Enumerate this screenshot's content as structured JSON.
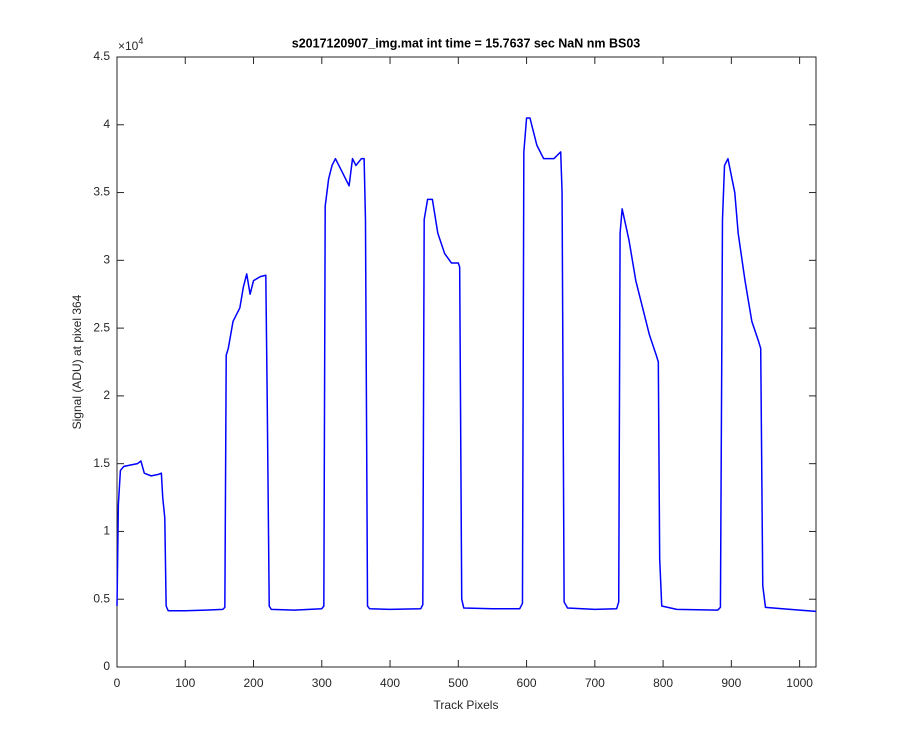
{
  "chart_data": {
    "type": "line",
    "title": "s2017120907_img.mat int time = 15.7637 sec  NaN nm BS03",
    "x_label": "Track Pixels",
    "y_label": "Signal (ADU) at pixel 364",
    "y_multiplier": {
      "base": "×10",
      "exponent": "4"
    },
    "xlim": [
      0,
      1024
    ],
    "xticks": [
      0,
      100,
      200,
      300,
      400,
      500,
      600,
      700,
      800,
      900,
      1000
    ],
    "ylim": [
      0,
      45000
    ],
    "yticks": [
      {
        "value": 0,
        "label": "0"
      },
      {
        "value": 5000,
        "label": "0.5"
      },
      {
        "value": 10000,
        "label": "1"
      },
      {
        "value": 15000,
        "label": "1.5"
      },
      {
        "value": 20000,
        "label": "2"
      },
      {
        "value": 25000,
        "label": "2.5"
      },
      {
        "value": 30000,
        "label": "3"
      },
      {
        "value": 35000,
        "label": "3.5"
      },
      {
        "value": 40000,
        "label": "4"
      },
      {
        "value": 45000,
        "label": "4.5"
      }
    ],
    "grid": false,
    "series": [
      {
        "color": "#0000ff",
        "x": [
          0,
          2,
          5,
          10,
          20,
          30,
          35,
          40,
          50,
          60,
          65,
          67,
          70,
          72,
          75,
          100,
          130,
          155,
          158,
          160,
          163,
          170,
          180,
          185,
          190,
          195,
          200,
          210,
          218,
          220,
          223,
          226,
          260,
          300,
          303,
          305,
          310,
          315,
          320,
          330,
          340,
          345,
          350,
          358,
          362,
          364,
          367,
          370,
          400,
          445,
          448,
          450,
          455,
          462,
          470,
          480,
          490,
          500,
          502,
          505,
          508,
          550,
          590,
          594,
          596,
          600,
          605,
          615,
          625,
          640,
          650,
          652,
          655,
          660,
          700,
          732,
          735,
          737,
          740,
          750,
          760,
          770,
          780,
          790,
          793,
          795,
          798,
          820,
          880,
          884,
          887,
          890,
          895,
          905,
          910,
          920,
          930,
          940,
          943,
          946,
          950,
          1000,
          1024
        ],
        "values": [
          4500,
          12000,
          14500,
          14800,
          14900,
          15000,
          15200,
          14300,
          14100,
          14200,
          14300,
          12500,
          11000,
          4500,
          4150,
          4150,
          4200,
          4250,
          4400,
          23000,
          23500,
          25500,
          26500,
          28000,
          29000,
          27500,
          28500,
          28800,
          28900,
          20000,
          4500,
          4250,
          4200,
          4300,
          4500,
          34000,
          36000,
          37000,
          37500,
          36500,
          35500,
          37500,
          37000,
          37500,
          37500,
          33000,
          4500,
          4300,
          4250,
          4300,
          4600,
          33000,
          34500,
          34500,
          32000,
          30500,
          29800,
          29800,
          29500,
          5000,
          4350,
          4300,
          4300,
          4700,
          38000,
          40500,
          40500,
          38500,
          37500,
          37500,
          38000,
          35000,
          4800,
          4350,
          4250,
          4300,
          4800,
          32000,
          33800,
          31500,
          28500,
          26500,
          24500,
          23000,
          22500,
          8000,
          4500,
          4250,
          4200,
          4400,
          33000,
          37000,
          37500,
          35000,
          32000,
          28500,
          25500,
          24000,
          23500,
          6000,
          4400,
          4200,
          4100
        ]
      }
    ]
  }
}
